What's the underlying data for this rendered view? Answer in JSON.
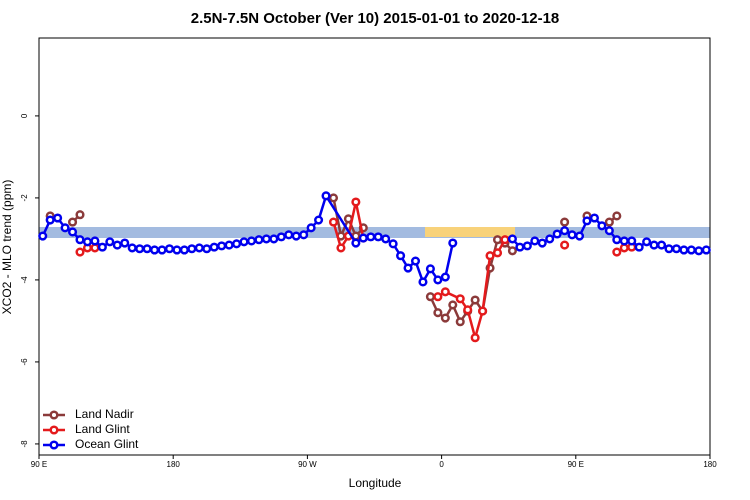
{
  "chart_data": {
    "type": "line",
    "title": "2.5N-7.5N October (Ver 10)   2015-01-01 to 2020-12-18",
    "xlabel": "Longitude",
    "ylabel": "XCO2 - MLO trend (ppm)",
    "xlim": [
      90,
      540
    ],
    "ylim": [
      -8.27,
      1.9
    ],
    "xticks": [
      {
        "value": 90,
        "label": "90 E"
      },
      180,
      {
        "value": 270,
        "label": "90 W"
      },
      {
        "value": 360,
        "label": "0"
      },
      {
        "value": 450,
        "label": "90 E"
      },
      {
        "value": 540,
        "label": "180"
      }
    ],
    "yticks": [
      0,
      -2,
      -4,
      -6,
      -8
    ],
    "legend": "bottom-left",
    "series": [
      {
        "name": "Land Nadir",
        "color": "#8b3a3a",
        "x": [
          97.5,
          105,
          112.5,
          117.5,
          200,
          287.5,
          292.5,
          297.5,
          302.5,
          307.5,
          330,
          352.5,
          357.5,
          362.5,
          367.5,
          372.5,
          377.5,
          382.5,
          387.5,
          392.5,
          397.5,
          402.5,
          407.5,
          425,
          442.5,
          450,
          457.5,
          465,
          472.5,
          477.5
        ],
        "values": [
          -2.44,
          null,
          -2.59,
          -2.41,
          null,
          -2.0,
          -2.93,
          -2.51,
          -2.93,
          -2.73,
          null,
          -4.41,
          -4.8,
          -4.93,
          -4.61,
          -5.02,
          -4.76,
          -4.49,
          -4.76,
          -3.71,
          -3.02,
          -3.1,
          -3.29,
          null,
          -2.59,
          null,
          -2.44,
          null,
          -2.59,
          -2.44
        ]
      },
      {
        "name": "Land Glint",
        "color": "#e41a1c",
        "x": [
          117.5,
          122.5,
          127.5,
          200,
          287.5,
          292.5,
          297.5,
          302.5,
          307.5,
          330,
          357.5,
          362.5,
          372.5,
          377.5,
          382.5,
          387.5,
          392.5,
          397.5,
          402.5,
          425,
          442.5,
          460,
          477.5,
          482.5,
          487.5
        ],
        "values": [
          -3.32,
          -3.22,
          -3.22,
          null,
          -2.59,
          -3.22,
          -2.93,
          -2.1,
          -2.98,
          null,
          -4.41,
          -4.29,
          -4.46,
          -4.73,
          -5.41,
          -4.76,
          -3.41,
          -3.34,
          -3.02,
          null,
          -3.15,
          null,
          -3.32,
          -3.22,
          -3.2
        ]
      },
      {
        "name": "Ocean Glint",
        "color": "#0000ee",
        "x": [
          92.5,
          97.5,
          102.5,
          107.5,
          112.5,
          117.5,
          122.5,
          127.5,
          132.5,
          137.5,
          142.5,
          147.5,
          152.5,
          157.5,
          162.5,
          167.5,
          172.5,
          177.5,
          182.5,
          187.5,
          192.5,
          197.5,
          202.5,
          207.5,
          212.5,
          217.5,
          222.5,
          227.5,
          232.5,
          237.5,
          242.5,
          247.5,
          252.5,
          257.5,
          262.5,
          267.5,
          272.5,
          277.5,
          282.5,
          302.5,
          307.5,
          312.5,
          317.5,
          322.5,
          327.5,
          332.5,
          337.5,
          342.5,
          347.5,
          352.5,
          357.5,
          362.5,
          367.5,
          387.5,
          407.5,
          412.5,
          417.5,
          422.5,
          427.5,
          432.5,
          437.5,
          442.5,
          447.5,
          452.5,
          457.5,
          462.5,
          467.5,
          472.5,
          477.5,
          482.5,
          487.5,
          492.5,
          497.5,
          502.5,
          507.5,
          512.5,
          517.5,
          522.5,
          527.5,
          532.5,
          537.5
        ],
        "values": [
          -2.93,
          -2.54,
          -2.49,
          -2.73,
          -2.83,
          -3.02,
          -3.07,
          -3.05,
          -3.2,
          -3.07,
          -3.15,
          -3.1,
          -3.22,
          -3.24,
          -3.24,
          -3.27,
          -3.27,
          -3.24,
          -3.27,
          -3.27,
          -3.24,
          -3.22,
          -3.24,
          -3.2,
          -3.17,
          -3.15,
          -3.12,
          -3.07,
          -3.05,
          -3.02,
          -3.0,
          -3.0,
          -2.95,
          -2.9,
          -2.93,
          -2.9,
          -2.73,
          -2.54,
          -1.95,
          -3.1,
          -2.98,
          -2.95,
          -2.95,
          -3.0,
          -3.12,
          -3.41,
          -3.71,
          -3.54,
          -4.05,
          -3.73,
          -4.0,
          -3.93,
          -3.1,
          null,
          -3.0,
          -3.2,
          -3.17,
          -3.05,
          -3.1,
          -3.0,
          -2.88,
          -2.8,
          -2.9,
          -2.93,
          -2.56,
          -2.49,
          -2.68,
          -2.8,
          -3.02,
          -3.05,
          -3.05,
          -3.2,
          -3.07,
          -3.15,
          -3.15,
          -3.24,
          -3.24,
          -3.27,
          -3.27,
          -3.29,
          -3.27
        ]
      }
    ]
  }
}
